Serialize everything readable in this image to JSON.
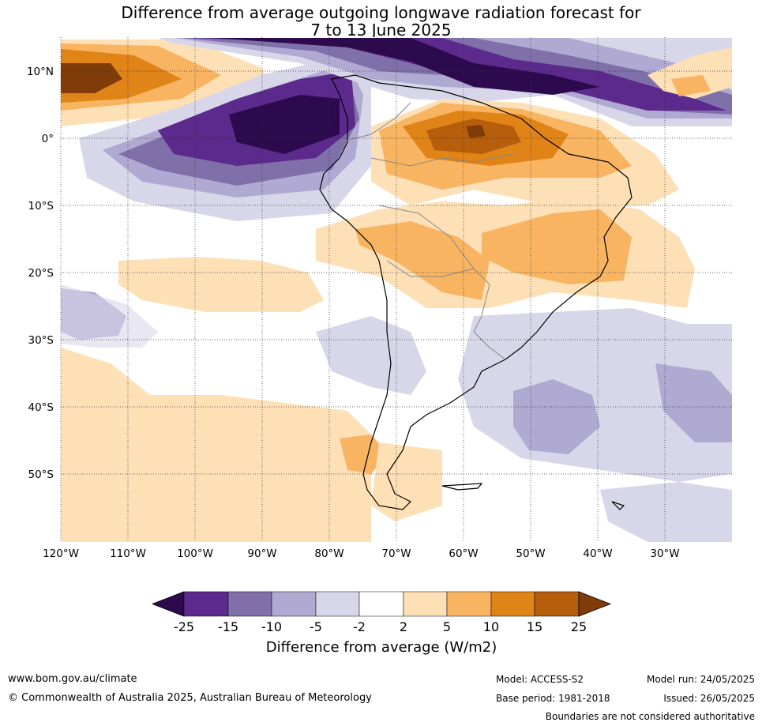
{
  "title": {
    "line1": "Difference from average outgoing longwave radiation forecast for",
    "line2": "7 to 13 June 2025"
  },
  "axes": {
    "lat_labels": [
      "10°N",
      "0°",
      "10°S",
      "20°S",
      "30°S",
      "40°S",
      "50°S"
    ],
    "lon_labels": [
      "120°W",
      "110°W",
      "100°W",
      "90°W",
      "80°W",
      "70°W",
      "60°W",
      "50°W",
      "40°W",
      "30°W"
    ]
  },
  "colorbar": {
    "ticks": [
      "-25",
      "-15",
      "-10",
      "-5",
      "-2",
      "2",
      "5",
      "10",
      "15",
      "25"
    ],
    "label": "Difference from average (W/m2)",
    "colors": [
      "#2d0a4e",
      "#5b2a8c",
      "#8070a9",
      "#b0a9d1",
      "#d8d7ea",
      "#ffffff",
      "#fde0b6",
      "#f9b462",
      "#e08418",
      "#b65e0c",
      "#7f3b08"
    ]
  },
  "footer": {
    "website": "www.bom.gov.au/climate",
    "copyright": "© Commonwealth of Australia 2025, Australian Bureau of Meteorology",
    "model": "Model: ACCESS-S2",
    "base_period": "Base period: 1981-2018",
    "model_run": "Model run: 24/05/2025",
    "issued": "Issued: 26/05/2025",
    "disclaimer": "Boundaries are not considered authoritative"
  }
}
